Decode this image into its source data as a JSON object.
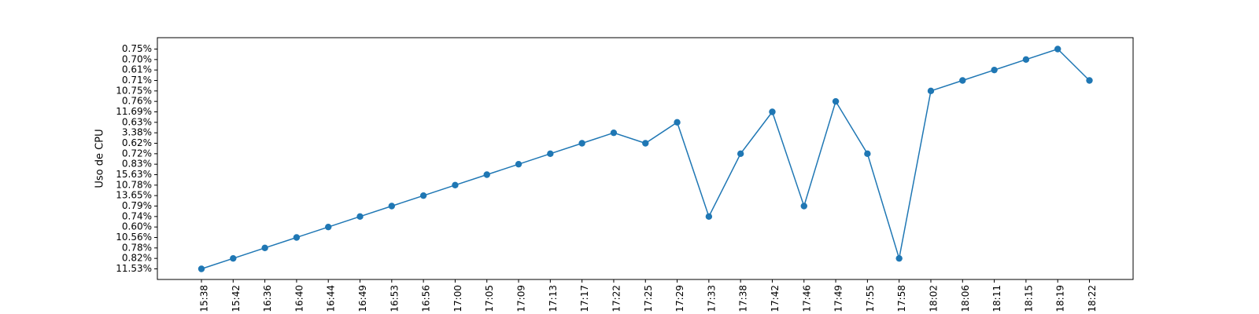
{
  "chart_data": {
    "type": "line",
    "marker": "circle",
    "color": "#1f77b4",
    "grid": false,
    "legend": false,
    "title": "",
    "xlabel": "",
    "ylabel": "Uso de CPU",
    "x_tick_labels": [
      "15:38",
      "15:42",
      "16:36",
      "16:40",
      "16:44",
      "16:49",
      "16:53",
      "16:56",
      "17:00",
      "17:05",
      "17:09",
      "17:13",
      "17:17",
      "17:22",
      "17:25",
      "17:29",
      "17:33",
      "17:38",
      "17:42",
      "17:46",
      "17:49",
      "17:55",
      "17:58",
      "18:02",
      "18:06",
      "18:11",
      "18:15",
      "18:19",
      "18:22"
    ],
    "y_categories": [
      "11.53%",
      "0.82%",
      "0.78%",
      "10.56%",
      "0.60%",
      "0.74%",
      "0.79%",
      "13.65%",
      "10.78%",
      "15.63%",
      "0.83%",
      "0.72%",
      "0.62%",
      "3.38%",
      "0.63%",
      "11.69%",
      "0.76%",
      "10.75%",
      "0.71%",
      "0.61%",
      "0.70%",
      "0.75%"
    ],
    "values": [
      "11.53%",
      "0.82%",
      "0.78%",
      "10.56%",
      "0.60%",
      "0.74%",
      "0.79%",
      "13.65%",
      "10.78%",
      "15.63%",
      "0.83%",
      "0.72%",
      "0.62%",
      "3.38%",
      "0.62%",
      "0.63%",
      "0.74%",
      "0.72%",
      "11.69%",
      "0.79%",
      "0.76%",
      "0.72%",
      "0.82%",
      "10.75%",
      "0.71%",
      "0.61%",
      "0.70%",
      "0.75%",
      "0.71%"
    ]
  }
}
